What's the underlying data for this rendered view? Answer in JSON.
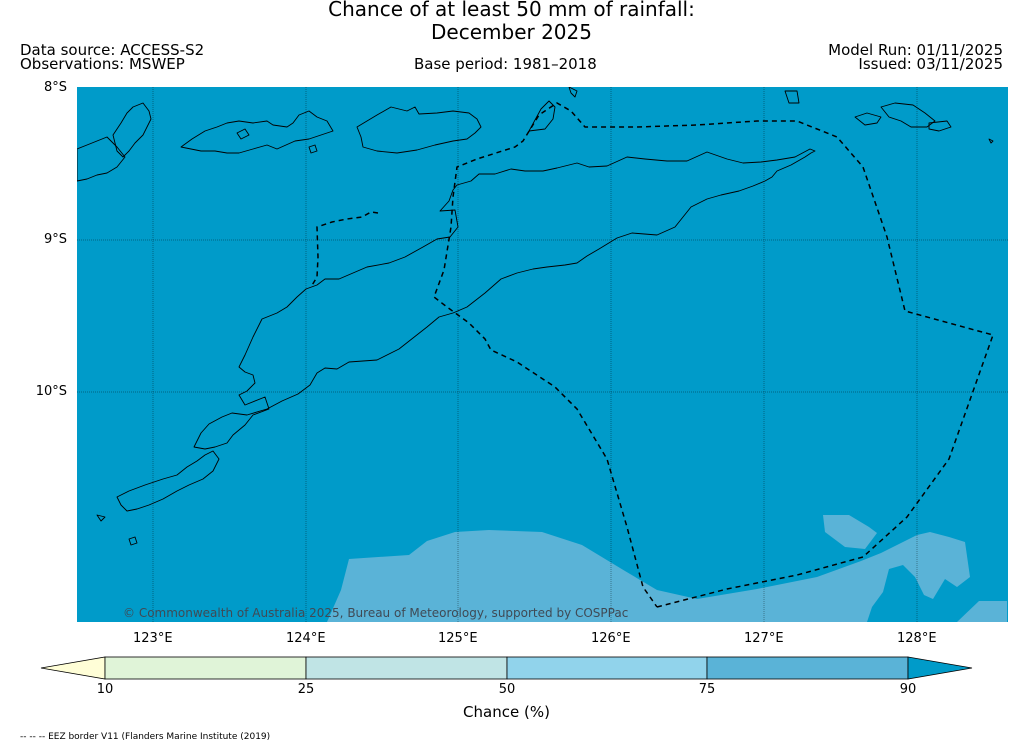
{
  "title": {
    "line1": "Chance of at least 50 mm of rainfall:",
    "line2": "December 2025"
  },
  "header": {
    "data_source": "Data source: ACCESS-S2",
    "observations": "Observations: MSWEP",
    "base_period": "Base period: 1981–2018",
    "model_run": "Model Run: 01/11/2025",
    "issued": "Issued: 03/11/2025"
  },
  "map": {
    "lat_labels": [
      "8°S",
      "9°S",
      "10°S"
    ],
    "lon_labels": [
      "123°E",
      "124°E",
      "125°E",
      "126°E",
      "127°E",
      "128°E"
    ],
    "extent": {
      "lon_min": 122.5,
      "lon_max": 128.6,
      "lat_max": -8.0,
      "lat_min": -11.5
    },
    "credit": "© Commonwealth of Australia 2025, Bureau of Meteorology, supported by COSPPac",
    "dominant_class": "90+",
    "colors": {
      "ocean_90plus": "#009bc9",
      "band_75_90": "#5ab3d7",
      "coastline": "#000000",
      "eez": "#000000"
    }
  },
  "colorbar": {
    "ticks": [
      "10",
      "25",
      "50",
      "75",
      "90"
    ],
    "label": "Chance (%)",
    "colors": [
      "#fffed7",
      "#e0f4d8",
      "#c0e4e5",
      "#91d3eb",
      "#5ab3d7",
      "#009bc9"
    ]
  },
  "footer": {
    "eez_note": "-- -- -- EEZ border V11 (Flanders Marine Institute (2019)"
  }
}
